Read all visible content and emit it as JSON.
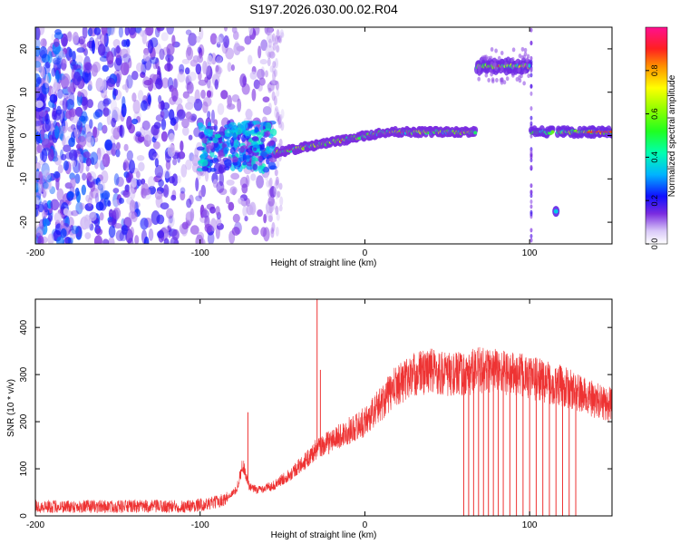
{
  "title": "S197.2026.030.00.02.R04",
  "chart_data": [
    {
      "type": "heatmap",
      "xlabel": "Height of straight line (km)",
      "ylabel": "Frequency (Hz)",
      "xlim": [
        -200,
        150
      ],
      "ylim": [
        -25,
        25
      ],
      "xticks": [
        -200,
        -100,
        0,
        100
      ],
      "yticks": [
        -20,
        -10,
        0,
        10,
        20
      ],
      "colorbar": {
        "label": "Normalized spectral amplitude",
        "range": [
          0,
          1
        ],
        "ticks": [
          0.0,
          0.2,
          0.4,
          0.6,
          0.8
        ],
        "tick_labels": [
          "0.0",
          "0.2",
          "0.4",
          "0.6",
          "0.8"
        ]
      },
      "features": [
        {
          "name": "noise-cloud",
          "x": [
            -200,
            -55
          ],
          "y": [
            -25,
            25
          ],
          "amplitude": 0.15
        },
        {
          "name": "onset-cluster",
          "x": [
            -100,
            -55
          ],
          "y": [
            -8,
            3
          ],
          "amplitude": 0.3
        },
        {
          "name": "main-trace",
          "x": [
            -55,
            67
          ],
          "y_start": -4,
          "y_end": 0.8,
          "amplitude": 0.5
        },
        {
          "name": "upper-band",
          "x": [
            68,
            100
          ],
          "y": 16,
          "amplitude": 0.55
        },
        {
          "name": "right-trace-a",
          "x": [
            101,
            114
          ],
          "y": 0.8,
          "amplitude": 0.4
        },
        {
          "name": "right-trace-b",
          "x": [
            117,
            150
          ],
          "y": 0.8,
          "amplitude": 0.7
        },
        {
          "name": "spot",
          "x": 116,
          "y": -17.5,
          "amplitude": 0.25
        }
      ]
    },
    {
      "type": "line",
      "xlabel": "Height of straight line (km)",
      "ylabel": "SNR (10 * v/v)",
      "xlim": [
        -200,
        150
      ],
      "ylim": [
        0,
        460
      ],
      "xticks": [
        -200,
        -100,
        0,
        100
      ],
      "yticks": [
        0,
        100,
        200,
        300,
        400
      ],
      "color": "#ee3333",
      "envelope": {
        "x": [
          -200,
          -150,
          -110,
          -95,
          -85,
          -78,
          -74,
          -70,
          -65,
          -55,
          -45,
          -35,
          -30,
          -20,
          -10,
          0,
          10,
          20,
          30,
          40,
          50,
          60,
          70,
          80,
          90,
          100,
          110,
          120,
          130,
          140,
          150
        ],
        "y": [
          20,
          20,
          20,
          25,
          35,
          55,
          110,
          60,
          55,
          65,
          90,
          120,
          140,
          160,
          180,
          200,
          240,
          280,
          300,
          310,
          300,
          300,
          310,
          310,
          300,
          295,
          285,
          275,
          260,
          245,
          235
        ]
      },
      "spikes": [
        {
          "x": -71,
          "y": 220
        },
        {
          "x": -29,
          "y": 460
        },
        {
          "x": -27,
          "y": 310
        }
      ],
      "dropouts_x": [
        60,
        63,
        66,
        69,
        72,
        75,
        78,
        81,
        84,
        88,
        92,
        96,
        100,
        104,
        108,
        112,
        116,
        120,
        124,
        128
      ]
    }
  ]
}
